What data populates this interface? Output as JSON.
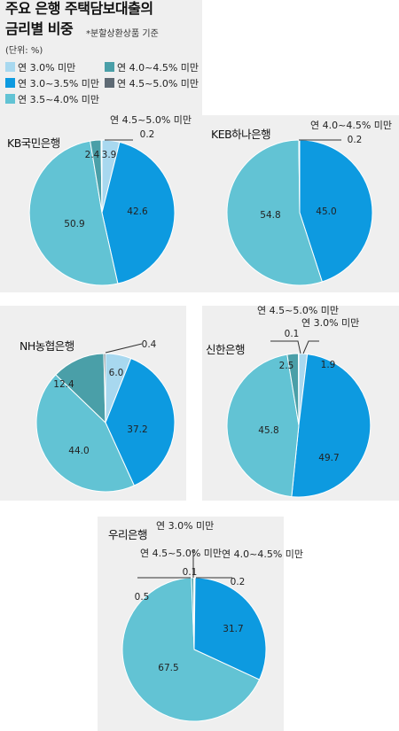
{
  "header": {
    "title_line1": "주요 은행 주택담보대출의",
    "title_line2": "금리별 비중",
    "basis_note": "*분할상환상품 기준",
    "unit_note": "(단위: %)"
  },
  "legend": [
    {
      "label": "연 3.0% 미만",
      "color": "#a8d8ef"
    },
    {
      "label": "연 4.0~4.5% 미만",
      "color": "#4a9fa8"
    },
    {
      "label": "연 3.0~3.5% 미만",
      "color": "#0d9ae0"
    },
    {
      "label": "연 4.5~5.0% 미만",
      "color": "#5e6a74"
    },
    {
      "label": "연 3.5~4.0% 미만",
      "color": "#62c3d4"
    }
  ],
  "chart_data": [
    {
      "type": "pie",
      "title": "KB국민은행",
      "slices": [
        {
          "category": "연 3.0% 미만",
          "value": 3.9,
          "label": "3.9"
        },
        {
          "category": "연 3.0~3.5% 미만",
          "value": 42.6,
          "label": "42.6"
        },
        {
          "category": "연 3.5~4.0% 미만",
          "value": 50.9,
          "label": "50.9"
        },
        {
          "category": "연 4.0~4.5% 미만",
          "value": 2.4,
          "label": "2.4"
        },
        {
          "category": "연 4.5~5.0% 미만",
          "value": 0.2,
          "label": "0.2"
        }
      ],
      "annotations": [
        "연 4.5~5.0% 미만"
      ]
    },
    {
      "type": "pie",
      "title": "KEB하나은행",
      "slices": [
        {
          "category": "연 3.0~3.5% 미만",
          "value": 45.0,
          "label": "45.0"
        },
        {
          "category": "연 3.5~4.0% 미만",
          "value": 54.8,
          "label": "54.8"
        },
        {
          "category": "연 4.0~4.5% 미만",
          "value": 0.2,
          "label": "0.2"
        }
      ],
      "annotations": [
        "연 4.0~4.5% 미만"
      ]
    },
    {
      "type": "pie",
      "title": "NH농협은행",
      "slices": [
        {
          "category": "연 3.0% 미만",
          "value": 6.0,
          "label": "6.0"
        },
        {
          "category": "연 3.0~3.5% 미만",
          "value": 37.2,
          "label": "37.2"
        },
        {
          "category": "연 3.5~4.0% 미만",
          "value": 44.0,
          "label": "44.0"
        },
        {
          "category": "연 4.0~4.5% 미만",
          "value": 12.4,
          "label": "12.4"
        },
        {
          "category": "연 4.5~5.0% 미만",
          "value": 0.4,
          "label": "0.4"
        }
      ],
      "annotations": []
    },
    {
      "type": "pie",
      "title": "신한은행",
      "slices": [
        {
          "category": "연 3.0% 미만",
          "value": 1.9,
          "label": "1.9"
        },
        {
          "category": "연 3.0~3.5% 미만",
          "value": 49.7,
          "label": "49.7"
        },
        {
          "category": "연 3.5~4.0% 미만",
          "value": 45.8,
          "label": "45.8"
        },
        {
          "category": "연 4.0~4.5% 미만",
          "value": 2.5,
          "label": "2.5"
        },
        {
          "category": "연 4.5~5.0% 미만",
          "value": 0.1,
          "label": "0.1"
        }
      ],
      "annotations": [
        "연 4.5~5.0% 미만",
        "연 3.0% 미만"
      ]
    },
    {
      "type": "pie",
      "title": "우리은행",
      "slices": [
        {
          "category": "연 3.0% 미만",
          "value": 0.2,
          "label": "0.2"
        },
        {
          "category": "연 3.0~3.5% 미만",
          "value": 31.7,
          "label": "31.7"
        },
        {
          "category": "연 3.5~4.0% 미만",
          "value": 67.5,
          "label": "67.5"
        },
        {
          "category": "연 4.0~4.5% 미만",
          "value": 0.5,
          "label": "0.5"
        },
        {
          "category": "연 4.5~5.0% 미만",
          "value": 0.1,
          "label": "0.1"
        }
      ],
      "annotations": [
        "연 4.5~5.0% 미만",
        "연 4.0~4.5% 미만",
        "연 3.0% 미만"
      ]
    }
  ]
}
